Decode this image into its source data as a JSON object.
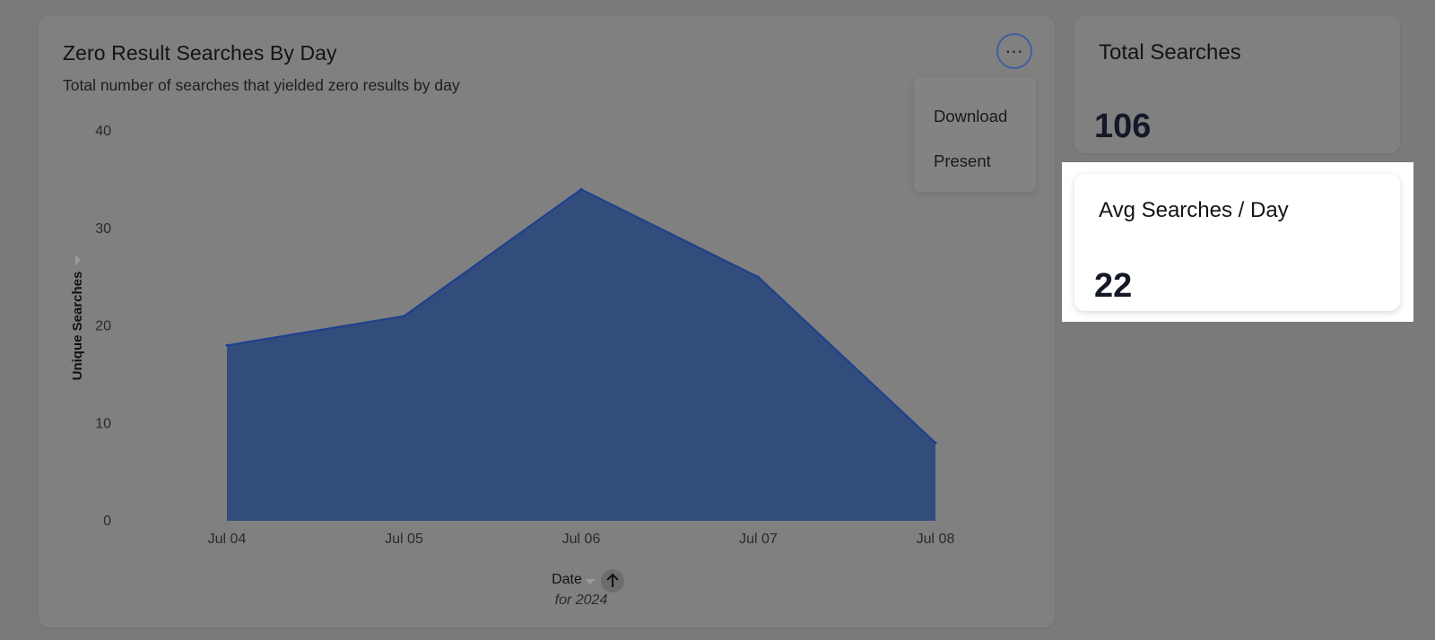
{
  "chart_card": {
    "title": "Zero Result Searches By Day",
    "subtitle": "Total number of searches that yielded zero results by day",
    "more_icon": "more-horizontal-icon",
    "menu": [
      "Download",
      "Present"
    ]
  },
  "chart_data": {
    "type": "area",
    "x": [
      "Jul 04",
      "Jul 05",
      "Jul 06",
      "Jul 07",
      "Jul 08"
    ],
    "series": [
      {
        "values": [
          18,
          21,
          34,
          25,
          8
        ],
        "color": "#324d7c"
      }
    ],
    "ylabel": "Unique Searches",
    "xlabel": "Date",
    "xlabel_sub": "for 2024",
    "ylim": [
      0,
      40
    ],
    "yticks": [
      0,
      10,
      20,
      30,
      40
    ],
    "grid": false,
    "line_color": "#1e3f8f"
  },
  "kpis": {
    "total": {
      "title": "Total Searches",
      "value": "106"
    },
    "avg": {
      "title": "Avg Searches / Day",
      "value": "22"
    }
  },
  "colors": {
    "overlay": "#7a7a7c",
    "area_fill": "#324d7c",
    "accent": "#3f5f9e"
  }
}
